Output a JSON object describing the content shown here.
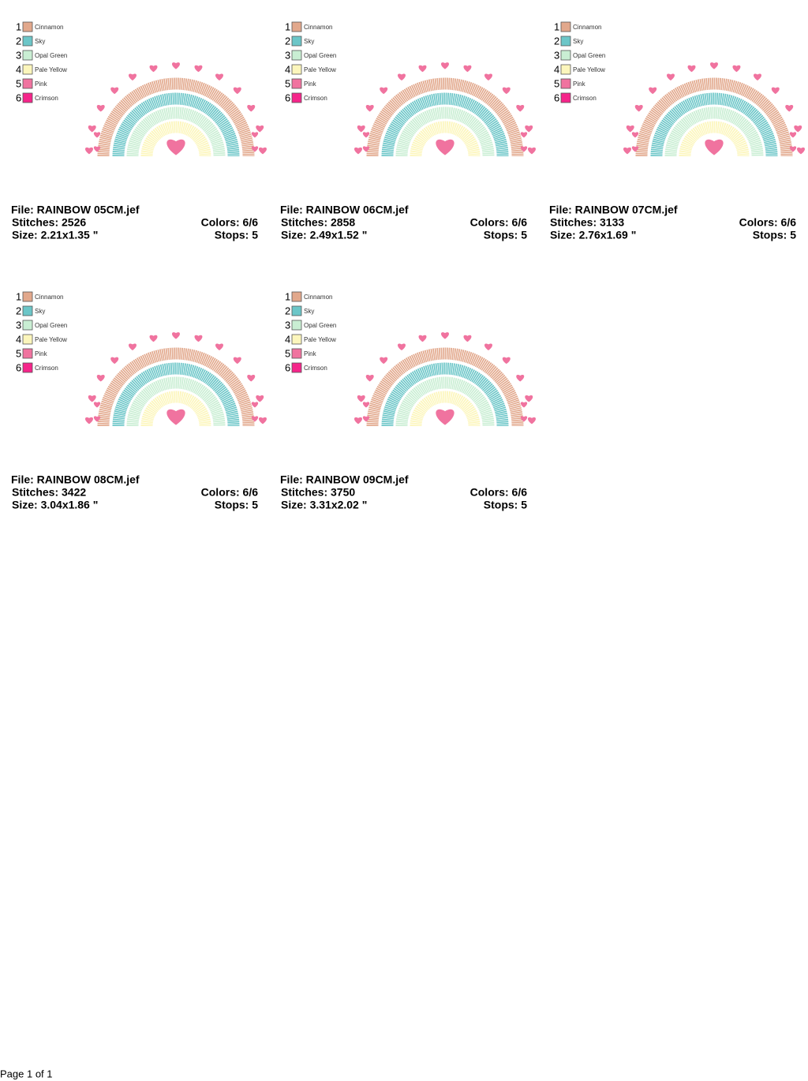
{
  "threads": [
    {
      "number": "1",
      "name": "Cinnamon",
      "color": "#e2a88c"
    },
    {
      "number": "2",
      "name": "Sky",
      "color": "#6cc6c8"
    },
    {
      "number": "3",
      "name": "Opal Green",
      "color": "#c9eed3"
    },
    {
      "number": "4",
      "name": "Pale Yellow",
      "color": "#fcf6bc"
    },
    {
      "number": "5",
      "name": "Pink",
      "color": "#f0739f"
    },
    {
      "number": "6",
      "name": "Crimson",
      "color": "#f5258a"
    }
  ],
  "designs": [
    {
      "file": "File: RAINBOW 05CM.jef",
      "stitches": "Stitches: 2526",
      "colors": "Colors: 6/6",
      "size": "Size: 2.21x1.35 \"",
      "stops": "Stops: 5"
    },
    {
      "file": "File: RAINBOW 06CM.jef",
      "stitches": "Stitches: 2858",
      "colors": "Colors: 6/6",
      "size": "Size: 2.49x1.52 \"",
      "stops": "Stops: 5"
    },
    {
      "file": "File: RAINBOW 07CM.jef",
      "stitches": "Stitches: 3133",
      "colors": "Colors: 6/6",
      "size": "Size: 2.76x1.69 \"",
      "stops": "Stops: 5"
    },
    {
      "file": "File: RAINBOW 08CM.jef",
      "stitches": "Stitches: 3422",
      "colors": "Colors: 6/6",
      "size": "Size: 3.04x1.86 \"",
      "stops": "Stops: 5"
    },
    {
      "file": "File: RAINBOW 09CM.jef",
      "stitches": "Stitches: 3750",
      "colors": "Colors: 6/6",
      "size": "Size: 3.31x2.02 \"",
      "stops": "Stops: 5"
    }
  ],
  "footer": "Page 1 of 1"
}
